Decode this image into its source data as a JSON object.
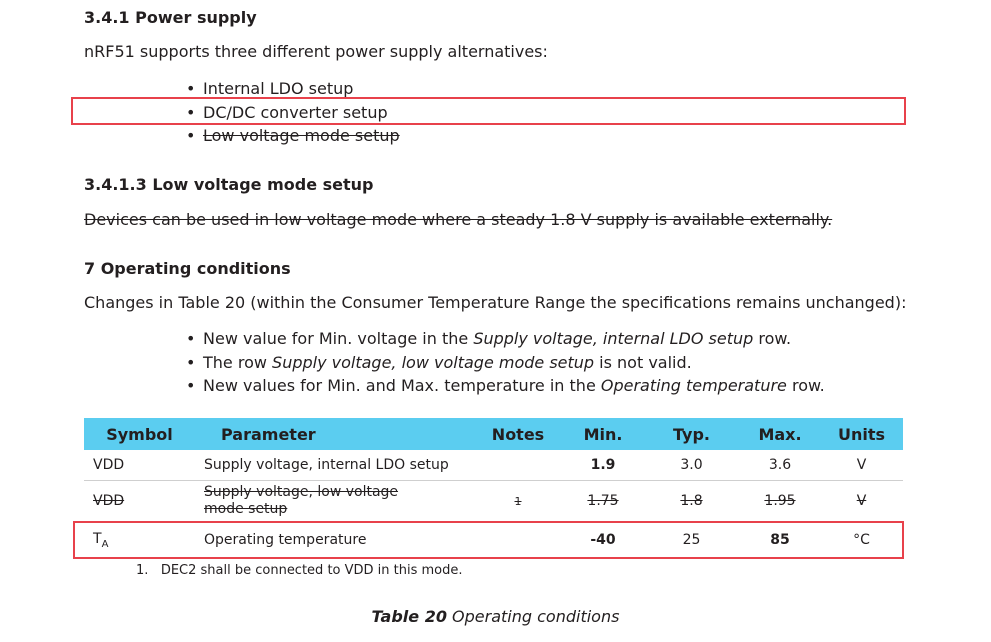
{
  "section1": {
    "heading": "3.4.1 Power supply",
    "intro": "nRF51 supports three different power supply alternatives:",
    "bullets": [
      "Internal LDO setup",
      "DC/DC converter setup",
      "Low voltage mode setup"
    ]
  },
  "section2": {
    "heading": "3.4.1.3 Low voltage mode setup",
    "body": "Devices can be used in low voltage mode where a steady 1.8 V supply is available externally."
  },
  "section3": {
    "heading": "7 Operating conditions",
    "intro": "Changes in Table 20 (within the Consumer Temperature Range the specifications remains unchanged):",
    "bullets": [
      {
        "pre": "New value for Min. voltage in the ",
        "em": "Supply voltage, internal LDO setup",
        "post": " row."
      },
      {
        "pre": "The row ",
        "em": "Supply voltage, low voltage mode setup",
        "post": " is not valid."
      },
      {
        "pre": "New values for Min. and Max. temperature in the ",
        "em": "Operating temperature",
        "post": " row."
      }
    ]
  },
  "table": {
    "headers": [
      "Symbol",
      "Parameter",
      "Notes",
      "Min.",
      "Typ.",
      "Max.",
      "Units"
    ],
    "rows": [
      {
        "symbol": "VDD",
        "parameter": "Supply voltage, internal LDO setup",
        "notes": "",
        "min": "1.9",
        "typ": "3.0",
        "max": "3.6",
        "units": "V"
      },
      {
        "symbol": "VDD",
        "parameter": "Supply voltage, low voltage mode setup",
        "notes": "1",
        "min": "1.75",
        "typ": "1.8",
        "max": "1.95",
        "units": "V"
      },
      {
        "symbol": "T",
        "symbol_sub": "A",
        "parameter": "Operating temperature",
        "notes": "",
        "min": "-40",
        "typ": "25",
        "max": "85",
        "units": "°C"
      }
    ],
    "footnote_number": "1.",
    "footnote": "DEC2 shall be connected to VDD in this mode.",
    "caption_bold": "Table 20",
    "caption": " Operating conditions"
  },
  "colors": {
    "header_bg": "#5bcdf0",
    "highlight": "#e8414b",
    "text": "#231f20"
  }
}
